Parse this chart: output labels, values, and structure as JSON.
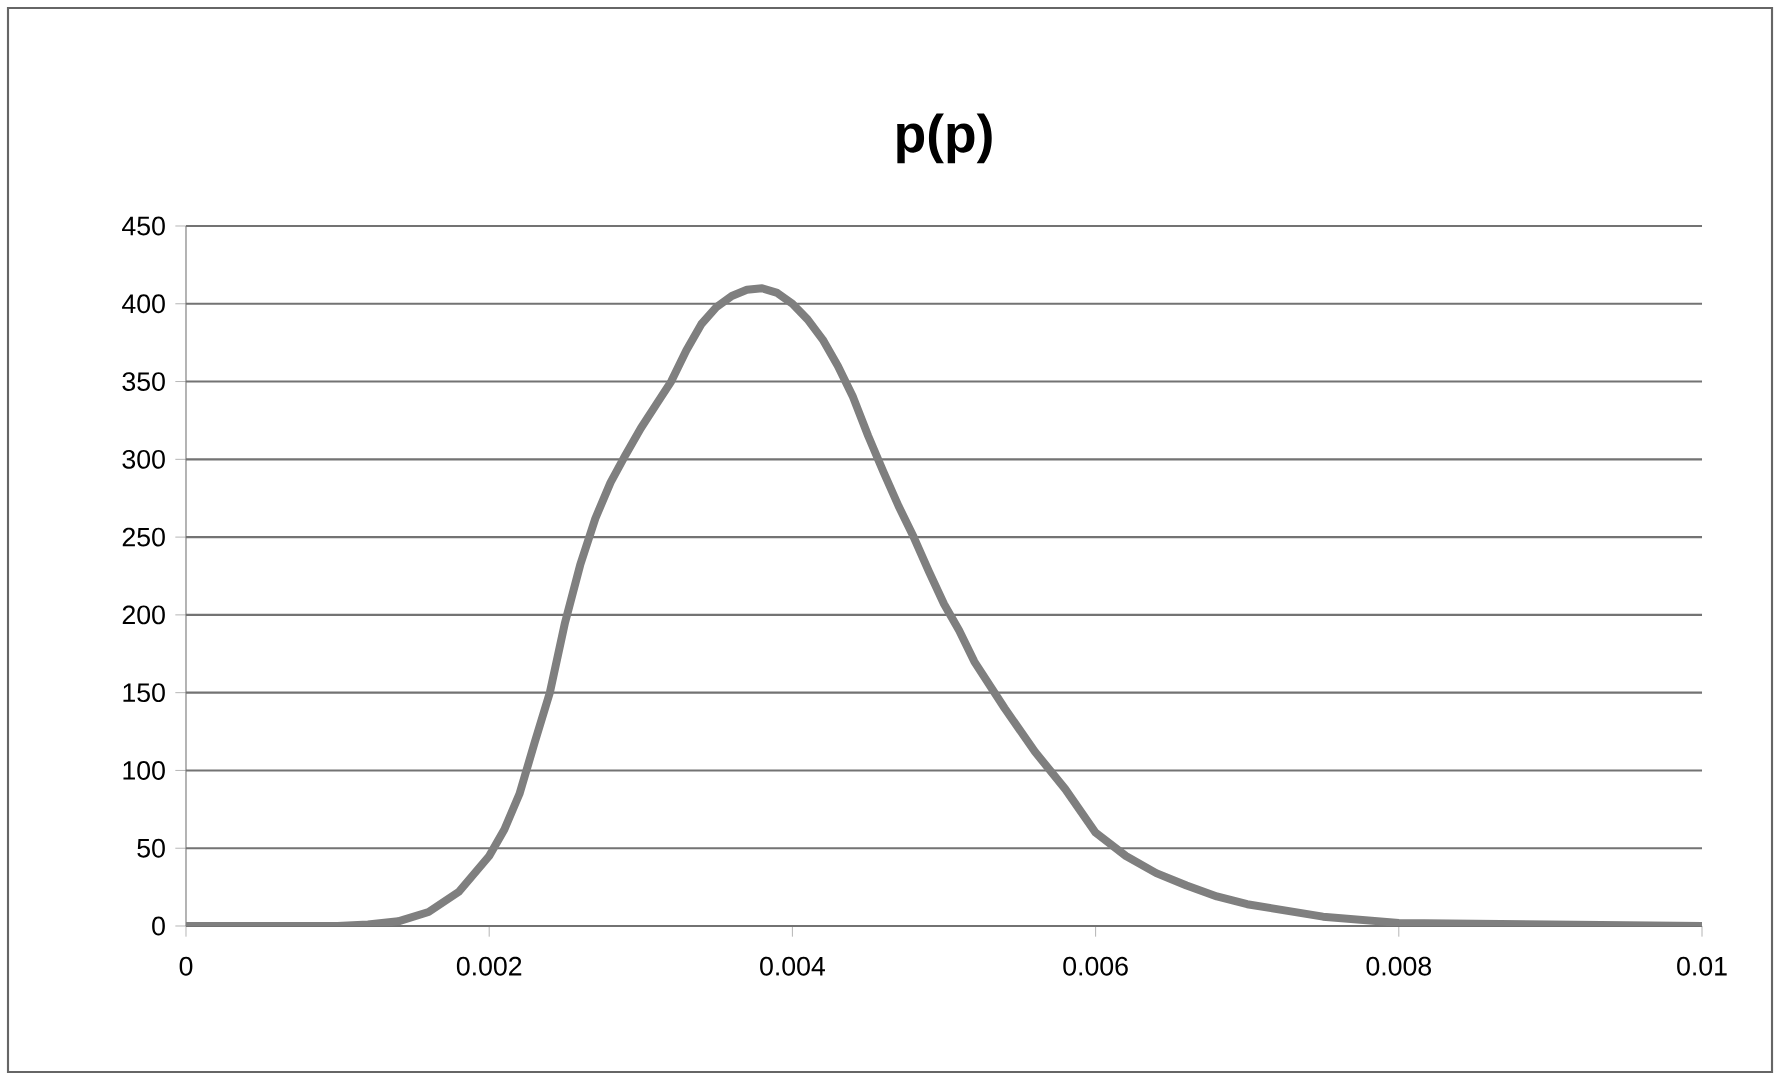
{
  "chart_data": {
    "type": "line",
    "title": "p(p)",
    "x": [
      0,
      0.001,
      0.0012,
      0.0014,
      0.0016,
      0.0018,
      0.002,
      0.0021,
      0.0022,
      0.0023,
      0.0024,
      0.0025,
      0.0026,
      0.0027,
      0.0028,
      0.0029,
      0.003,
      0.0031,
      0.0032,
      0.0033,
      0.0034,
      0.0035,
      0.0036,
      0.0037,
      0.0038,
      0.0039,
      0.004,
      0.0041,
      0.0042,
      0.0043,
      0.0044,
      0.0045,
      0.0046,
      0.0047,
      0.0048,
      0.0049,
      0.005,
      0.0051,
      0.0052,
      0.0054,
      0.0056,
      0.0058,
      0.006,
      0.0062,
      0.0064,
      0.0066,
      0.0068,
      0.007,
      0.0075,
      0.008,
      0.009,
      0.01
    ],
    "series": [
      {
        "color": "#7f7f7f",
        "values": [
          0,
          0,
          1,
          3,
          9,
          22,
          45,
          62,
          85,
          118,
          150,
          195,
          232,
          262,
          285,
          303,
          320,
          335,
          350,
          370,
          387,
          398,
          405,
          409,
          410,
          407,
          400,
          390,
          377,
          360,
          340,
          315,
          292,
          270,
          250,
          228,
          207,
          190,
          170,
          140,
          112,
          88,
          60,
          45,
          34,
          26,
          19,
          14,
          6,
          2,
          1,
          0
        ]
      }
    ],
    "xlim": [
      0,
      0.01
    ],
    "ylim": [
      0,
      450
    ],
    "xticks": [
      0,
      0.002,
      0.004,
      0.006,
      0.008,
      0.01
    ],
    "yticks": [
      0,
      50,
      100,
      150,
      200,
      250,
      300,
      350,
      400,
      450
    ],
    "grid": "y",
    "marker": "none",
    "line_style": "solid"
  }
}
